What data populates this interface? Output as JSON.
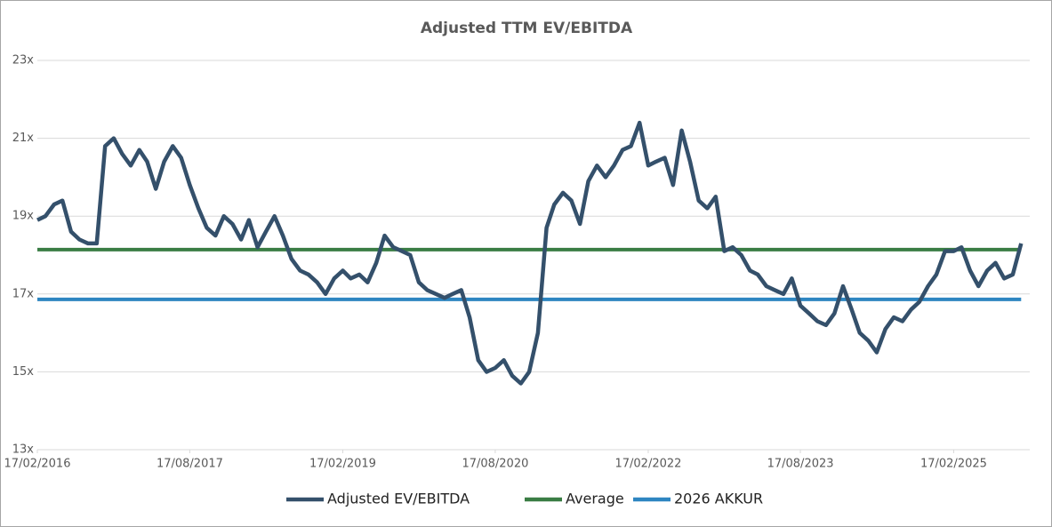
{
  "chart_data": {
    "type": "line",
    "title": "Adjusted TTM EV/EBITDA",
    "xlim": [
      "2016-02-17",
      "2025-11-17"
    ],
    "xticks": [
      {
        "value": "2016-02-17",
        "label": "17/02/2016"
      },
      {
        "value": "2017-08-17",
        "label": "17/08/2017"
      },
      {
        "value": "2019-02-17",
        "label": "17/02/2019"
      },
      {
        "value": "2020-08-17",
        "label": "17/08/2020"
      },
      {
        "value": "2022-02-17",
        "label": "17/02/2022"
      },
      {
        "value": "2023-08-17",
        "label": "17/08/2023"
      },
      {
        "value": "2025-02-17",
        "label": "17/02/2025"
      }
    ],
    "ylim": [
      13,
      23
    ],
    "yticks": [
      {
        "value": 13,
        "label": "13x"
      },
      {
        "value": 15,
        "label": "15x"
      },
      {
        "value": 17,
        "label": "17x"
      },
      {
        "value": 19,
        "label": "19x"
      },
      {
        "value": 21,
        "label": "21x"
      },
      {
        "value": 23,
        "label": "23x"
      }
    ],
    "grid": true,
    "legend": "bottom",
    "series": [
      {
        "name": "Adjusted EV/EBITDA",
        "color": "#34506b",
        "x": [
          "2016-02-17",
          "2016-03-17",
          "2016-04-17",
          "2016-05-17",
          "2016-06-17",
          "2016-07-17",
          "2016-08-17",
          "2016-09-17",
          "2016-10-17",
          "2016-11-17",
          "2016-12-17",
          "2017-01-17",
          "2017-02-17",
          "2017-03-17",
          "2017-04-17",
          "2017-05-17",
          "2017-06-17",
          "2017-07-17",
          "2017-08-17",
          "2017-09-17",
          "2017-10-17",
          "2017-11-17",
          "2017-12-17",
          "2018-01-17",
          "2018-02-17",
          "2018-03-17",
          "2018-04-17",
          "2018-05-17",
          "2018-06-17",
          "2018-07-17",
          "2018-08-17",
          "2018-09-17",
          "2018-10-17",
          "2018-11-17",
          "2018-12-17",
          "2019-01-17",
          "2019-02-17",
          "2019-03-17",
          "2019-04-17",
          "2019-05-17",
          "2019-06-17",
          "2019-07-17",
          "2019-08-17",
          "2019-09-17",
          "2019-10-17",
          "2019-11-17",
          "2019-12-17",
          "2020-01-17",
          "2020-02-17",
          "2020-03-17",
          "2020-04-17",
          "2020-05-17",
          "2020-06-17",
          "2020-07-17",
          "2020-08-17",
          "2020-09-17",
          "2020-10-17",
          "2020-11-17",
          "2020-12-17",
          "2021-01-17",
          "2021-02-17",
          "2021-03-17",
          "2021-04-17",
          "2021-05-17",
          "2021-06-17",
          "2021-07-17",
          "2021-08-17",
          "2021-09-17",
          "2021-10-17",
          "2021-11-17",
          "2021-12-17",
          "2022-01-17",
          "2022-02-17",
          "2022-03-17",
          "2022-04-17",
          "2022-05-17",
          "2022-06-17",
          "2022-07-17",
          "2022-08-17",
          "2022-09-17",
          "2022-10-17",
          "2022-11-17",
          "2022-12-17",
          "2023-01-17",
          "2023-02-17",
          "2023-03-17",
          "2023-04-17",
          "2023-05-17",
          "2023-06-17",
          "2023-07-17",
          "2023-08-17",
          "2023-09-17",
          "2023-10-17",
          "2023-11-17",
          "2023-12-17",
          "2024-01-17",
          "2024-02-17",
          "2024-03-17",
          "2024-04-17",
          "2024-05-17",
          "2024-06-17",
          "2024-07-17",
          "2024-08-17",
          "2024-09-17",
          "2024-10-17",
          "2024-11-17",
          "2024-12-17",
          "2025-01-17",
          "2025-02-17",
          "2025-03-17",
          "2025-04-17",
          "2025-05-17",
          "2025-06-17",
          "2025-07-17",
          "2025-08-17",
          "2025-09-17",
          "2025-10-17"
        ],
        "values": [
          18.9,
          19.0,
          19.3,
          19.4,
          18.6,
          18.4,
          18.3,
          18.3,
          20.8,
          21.0,
          20.6,
          20.3,
          20.7,
          20.4,
          19.7,
          20.4,
          20.8,
          20.5,
          19.8,
          19.2,
          18.7,
          18.5,
          19.0,
          18.8,
          18.4,
          18.9,
          18.2,
          18.6,
          19.0,
          18.5,
          17.9,
          17.6,
          17.5,
          17.3,
          17.0,
          17.4,
          17.6,
          17.4,
          17.5,
          17.3,
          17.8,
          18.5,
          18.2,
          18.1,
          18.0,
          17.3,
          17.1,
          17.0,
          16.9,
          17.0,
          17.1,
          16.4,
          15.3,
          15.0,
          15.1,
          15.3,
          14.9,
          14.7,
          15.0,
          16.0,
          18.7,
          19.3,
          19.6,
          19.4,
          18.8,
          19.9,
          20.3,
          20.0,
          20.3,
          20.7,
          20.8,
          21.4,
          20.3,
          20.4,
          20.5,
          19.8,
          21.2,
          20.4,
          19.4,
          19.2,
          19.5,
          18.1,
          18.2,
          18.0,
          17.6,
          17.5,
          17.2,
          17.1,
          17.0,
          17.4,
          16.7,
          16.5,
          16.3,
          16.2,
          16.5,
          17.2,
          16.6,
          16.0,
          15.8,
          15.5,
          16.1,
          16.4,
          16.3,
          16.6,
          16.8,
          17.2,
          17.5,
          18.1,
          18.1,
          18.2,
          17.6,
          17.2,
          17.6,
          17.8,
          17.4,
          17.5,
          18.3
        ]
      },
      {
        "name": "Average",
        "color": "#3a7d44",
        "x": [
          "2016-02-17",
          "2025-10-17"
        ],
        "values": [
          18.14,
          18.14
        ]
      },
      {
        "name": "2026 AKKUR",
        "color": "#2e86c1",
        "x": [
          "2016-02-17",
          "2025-10-17"
        ],
        "values": [
          16.86,
          16.86
        ]
      }
    ]
  }
}
